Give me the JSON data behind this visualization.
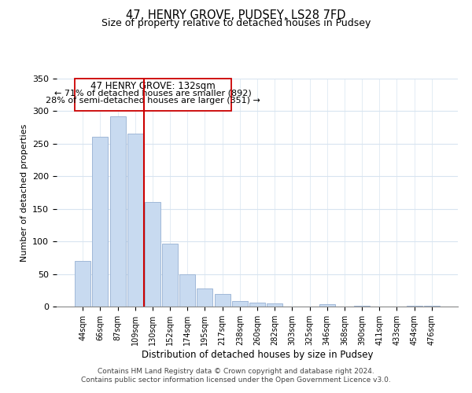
{
  "title": "47, HENRY GROVE, PUDSEY, LS28 7FD",
  "subtitle": "Size of property relative to detached houses in Pudsey",
  "xlabel": "Distribution of detached houses by size in Pudsey",
  "ylabel": "Number of detached properties",
  "bar_labels": [
    "44sqm",
    "66sqm",
    "87sqm",
    "109sqm",
    "130sqm",
    "152sqm",
    "174sqm",
    "195sqm",
    "217sqm",
    "238sqm",
    "260sqm",
    "282sqm",
    "303sqm",
    "325sqm",
    "346sqm",
    "368sqm",
    "390sqm",
    "411sqm",
    "433sqm",
    "454sqm",
    "476sqm"
  ],
  "bar_heights": [
    70,
    261,
    292,
    265,
    160,
    97,
    49,
    28,
    19,
    9,
    6,
    5,
    0,
    0,
    4,
    0,
    1,
    0,
    0,
    1,
    1
  ],
  "bar_color": "#c8daf0",
  "bar_edge_color": "#a0b8d8",
  "vline_x_index": 4,
  "vline_color": "#cc0000",
  "annotation_title": "47 HENRY GROVE: 132sqm",
  "annotation_line1": "← 71% of detached houses are smaller (892)",
  "annotation_line2": "28% of semi-detached houses are larger (351) →",
  "annotation_box_color": "#ffffff",
  "annotation_box_edge": "#cc0000",
  "ylim": [
    0,
    350
  ],
  "yticks": [
    0,
    50,
    100,
    150,
    200,
    250,
    300,
    350
  ],
  "footer_line1": "Contains HM Land Registry data © Crown copyright and database right 2024.",
  "footer_line2": "Contains public sector information licensed under the Open Government Licence v3.0.",
  "bg_color": "#ffffff",
  "grid_color": "#d8e4f0"
}
